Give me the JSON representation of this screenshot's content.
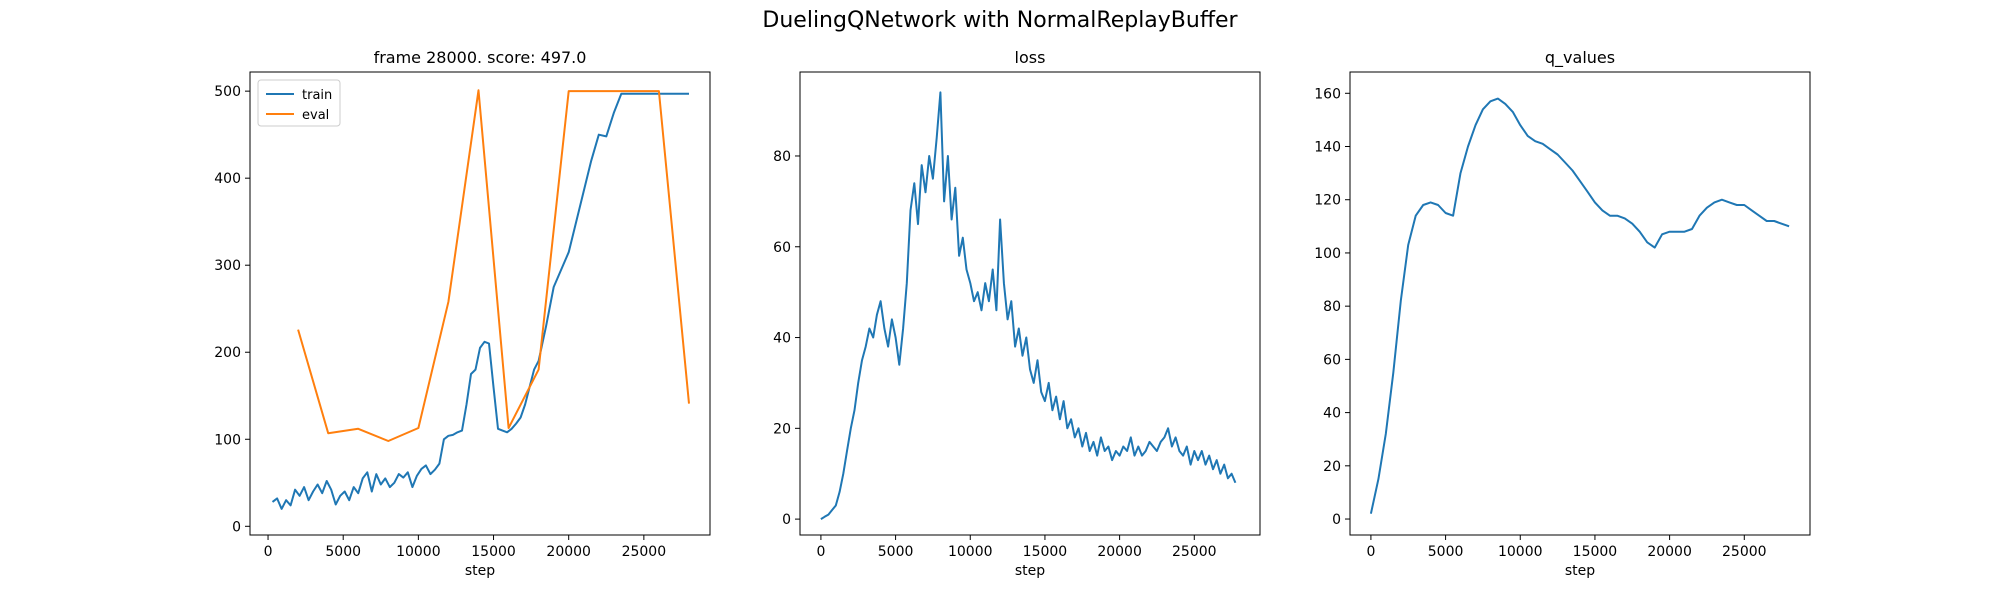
{
  "figure": {
    "suptitle": "DuelingQNetwork with NormalReplayBuffer"
  },
  "colors": {
    "train": "#1f77b4",
    "eval": "#ff7f0e",
    "axis": "#000000"
  },
  "chart_data": [
    {
      "type": "line",
      "title": "frame 28000. score: 497.0",
      "xlabel": "step",
      "ylabel": "",
      "xlim": [
        -1200,
        29400
      ],
      "ylim": [
        -10,
        522
      ],
      "xticks": [
        0,
        5000,
        10000,
        15000,
        20000,
        25000
      ],
      "yticks": [
        0,
        100,
        200,
        300,
        400,
        500
      ],
      "legend": {
        "placement": "top-left",
        "entries": [
          "train",
          "eval"
        ]
      },
      "series": [
        {
          "name": "train",
          "x": [
            300,
            600,
            900,
            1200,
            1500,
            1800,
            2100,
            2400,
            2700,
            3000,
            3300,
            3600,
            3900,
            4200,
            4500,
            4800,
            5100,
            5400,
            5700,
            6000,
            6300,
            6600,
            6900,
            7200,
            7500,
            7800,
            8100,
            8400,
            8700,
            9000,
            9300,
            9600,
            9900,
            10200,
            10500,
            10800,
            11100,
            11400,
            11700,
            12000,
            12300,
            12600,
            12900,
            13200,
            13500,
            13800,
            14100,
            14400,
            14700,
            15000,
            15300,
            15600,
            15900,
            16200,
            16500,
            16800,
            17100,
            17400,
            17700,
            18000,
            18500,
            19000,
            19500,
            20000,
            20500,
            21000,
            21500,
            22000,
            22500,
            23000,
            23500,
            24000,
            24500,
            25000,
            25500,
            26000,
            26500,
            27000,
            27500,
            28000
          ],
          "y": [
            28,
            32,
            20,
            30,
            24,
            42,
            35,
            45,
            30,
            40,
            48,
            38,
            52,
            42,
            25,
            35,
            40,
            30,
            45,
            38,
            55,
            62,
            40,
            60,
            48,
            55,
            45,
            50,
            60,
            56,
            62,
            45,
            58,
            66,
            70,
            60,
            65,
            72,
            100,
            104,
            105,
            108,
            110,
            140,
            175,
            180,
            205,
            212,
            210,
            160,
            112,
            110,
            108,
            112,
            118,
            125,
            140,
            160,
            180,
            190,
            230,
            275,
            295,
            315,
            350,
            385,
            420,
            450,
            448,
            475,
            497,
            497,
            497,
            497,
            497,
            497,
            497,
            497,
            497,
            497
          ]
        },
        {
          "name": "eval",
          "x": [
            2000,
            4000,
            6000,
            8000,
            10000,
            12000,
            14000,
            16000,
            18000,
            20000,
            22000,
            24000,
            26000,
            28000
          ],
          "y": [
            226,
            107,
            112,
            98,
            113,
            258,
            501,
            113,
            180,
            500,
            500,
            500,
            500,
            141
          ]
        }
      ]
    },
    {
      "type": "line",
      "title": "loss",
      "xlabel": "step",
      "ylabel": "",
      "xlim": [
        -1400,
        29400
      ],
      "ylim": [
        -3.5,
        98.5
      ],
      "xticks": [
        0,
        5000,
        10000,
        15000,
        20000,
        25000
      ],
      "yticks": [
        0,
        20,
        40,
        60,
        80
      ],
      "series": [
        {
          "name": "",
          "x": [
            0,
            250,
            500,
            750,
            1000,
            1250,
            1500,
            1750,
            2000,
            2250,
            2500,
            2750,
            3000,
            3250,
            3500,
            3750,
            4000,
            4250,
            4500,
            4750,
            5000,
            5250,
            5500,
            5750,
            6000,
            6250,
            6500,
            6750,
            7000,
            7250,
            7500,
            7750,
            8000,
            8250,
            8500,
            8750,
            9000,
            9250,
            9500,
            9750,
            10000,
            10250,
            10500,
            10750,
            11000,
            11250,
            11500,
            11750,
            12000,
            12250,
            12500,
            12750,
            13000,
            13250,
            13500,
            13750,
            14000,
            14250,
            14500,
            14750,
            15000,
            15250,
            15500,
            15750,
            16000,
            16250,
            16500,
            16750,
            17000,
            17250,
            17500,
            17750,
            18000,
            18250,
            18500,
            18750,
            19000,
            19250,
            19500,
            19750,
            20000,
            20250,
            20500,
            20750,
            21000,
            21250,
            21500,
            21750,
            22000,
            22250,
            22500,
            22750,
            23000,
            23250,
            23500,
            23750,
            24000,
            24250,
            24500,
            24750,
            25000,
            25250,
            25500,
            25750,
            26000,
            26250,
            26500,
            26750,
            27000,
            27250,
            27500,
            27750
          ],
          "y": [
            0,
            0.5,
            1,
            2,
            3,
            6,
            10,
            15,
            20,
            24,
            30,
            35,
            38,
            42,
            40,
            45,
            48,
            42,
            38,
            44,
            40,
            34,
            42,
            52,
            68,
            74,
            65,
            78,
            72,
            80,
            75,
            84,
            94,
            70,
            80,
            66,
            73,
            58,
            62,
            55,
            52,
            48,
            50,
            46,
            52,
            48,
            55,
            46,
            66,
            52,
            44,
            48,
            38,
            42,
            36,
            40,
            33,
            30,
            35,
            28,
            26,
            30,
            24,
            27,
            22,
            26,
            20,
            22,
            18,
            20,
            16,
            19,
            15,
            17,
            14,
            18,
            15,
            16,
            13,
            15,
            14,
            16,
            15,
            18,
            14,
            16,
            14,
            15,
            17,
            16,
            15,
            17,
            18,
            20,
            16,
            18,
            15,
            14,
            16,
            12,
            15,
            13,
            15,
            12,
            14,
            11,
            13,
            10,
            12,
            9,
            10,
            8
          ]
        }
      ]
    },
    {
      "type": "line",
      "title": "q_values",
      "xlabel": "step",
      "ylabel": "",
      "xlim": [
        -1400,
        29400
      ],
      "ylim": [
        -6,
        168
      ],
      "xticks": [
        0,
        5000,
        10000,
        15000,
        20000,
        25000
      ],
      "yticks": [
        0,
        20,
        40,
        60,
        80,
        100,
        120,
        140,
        160
      ],
      "series": [
        {
          "name": "",
          "x": [
            0,
            500,
            1000,
            1500,
            2000,
            2500,
            3000,
            3500,
            4000,
            4500,
            5000,
            5500,
            6000,
            6500,
            7000,
            7500,
            8000,
            8500,
            9000,
            9500,
            10000,
            10500,
            11000,
            11500,
            12000,
            12500,
            13000,
            13500,
            14000,
            14500,
            15000,
            15500,
            16000,
            16500,
            17000,
            17500,
            18000,
            18500,
            19000,
            19500,
            20000,
            20500,
            21000,
            21500,
            22000,
            22500,
            23000,
            23500,
            24000,
            24500,
            25000,
            25500,
            26000,
            26500,
            27000,
            27500,
            28000
          ],
          "y": [
            2,
            15,
            32,
            55,
            82,
            103,
            114,
            118,
            119,
            118,
            115,
            114,
            130,
            140,
            148,
            154,
            157,
            158,
            156,
            153,
            148,
            144,
            142,
            141,
            139,
            137,
            134,
            131,
            127,
            123,
            119,
            116,
            114,
            114,
            113,
            111,
            108,
            104,
            102,
            107,
            108,
            108,
            108,
            109,
            114,
            117,
            119,
            120,
            119,
            118,
            118,
            116,
            114,
            112,
            112,
            111,
            110
          ]
        }
      ]
    }
  ]
}
